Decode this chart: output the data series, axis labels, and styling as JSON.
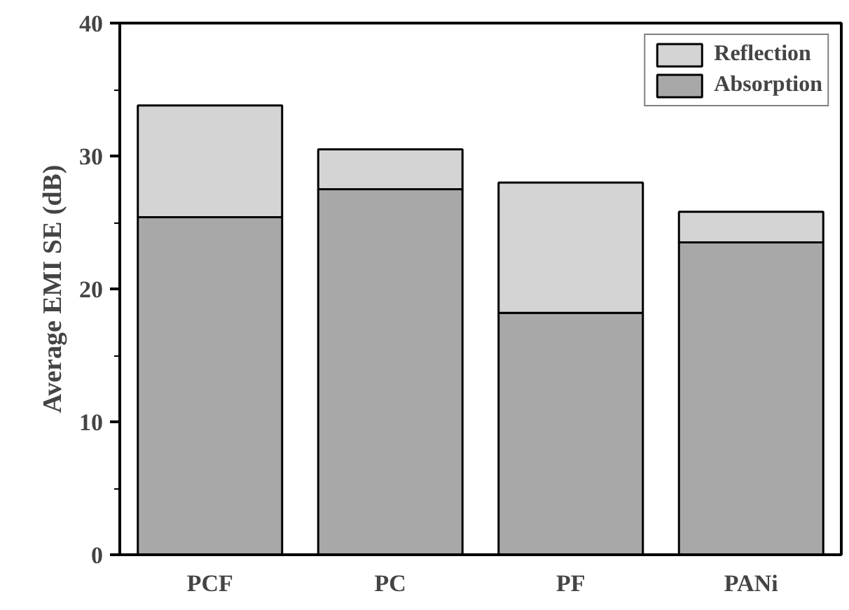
{
  "chart_data": {
    "type": "bar",
    "stacked": true,
    "ylabel": "Average EMI SE (dB)",
    "categories": [
      "PCF",
      "PC",
      "PF",
      "PANi"
    ],
    "series": [
      {
        "name": "Absorption",
        "color": "#a8a8a8",
        "values": [
          25.4,
          27.5,
          18.2,
          23.5
        ]
      },
      {
        "name": "Reflection",
        "color": "#d4d4d4",
        "values": [
          8.4,
          3.0,
          9.8,
          2.3
        ]
      }
    ],
    "ylim": [
      0,
      40
    ],
    "yticks": [
      0,
      10,
      20,
      30,
      40
    ],
    "grid": false,
    "legend": "top right"
  }
}
